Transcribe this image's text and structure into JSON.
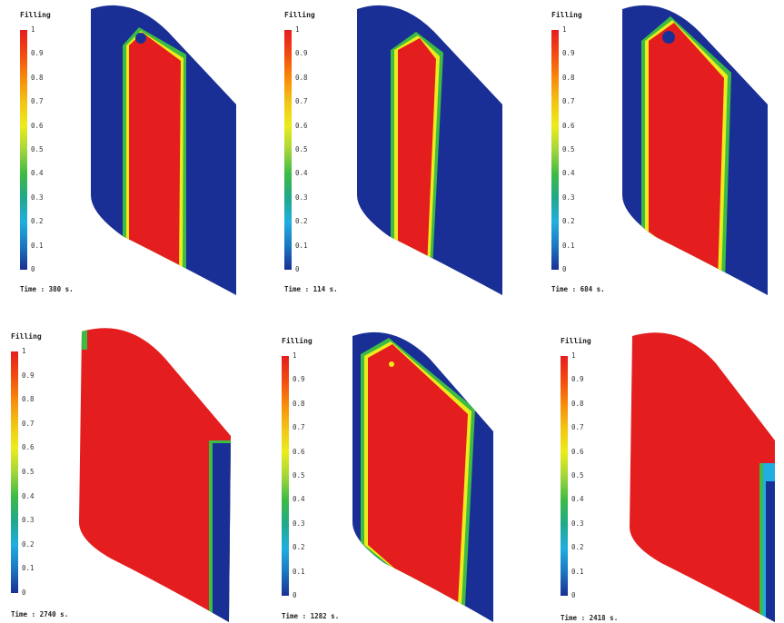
{
  "legend": {
    "title": "Filling",
    "ticks": [
      "1",
      "0.9",
      "0.8",
      "0.7",
      "0.6",
      "0.5",
      "0.4",
      "0.3",
      "0.2",
      "0.1",
      "0"
    ],
    "colors": [
      "#e41e1e",
      "#f24a10",
      "#f88a0a",
      "#f2c415",
      "#ecec1c",
      "#a4d63a",
      "#3dbb44",
      "#1fa98a",
      "#20aee0",
      "#1b78c2",
      "#1a2f95"
    ]
  },
  "panels": [
    {
      "time": "Time : 380 s."
    },
    {
      "time": "Time : 114 s."
    },
    {
      "time": "Time : 684 s."
    },
    {
      "time": "Time : 2740 s."
    },
    {
      "time": "Time : 1282 s."
    },
    {
      "time": "Time : 2418 s."
    }
  ]
}
